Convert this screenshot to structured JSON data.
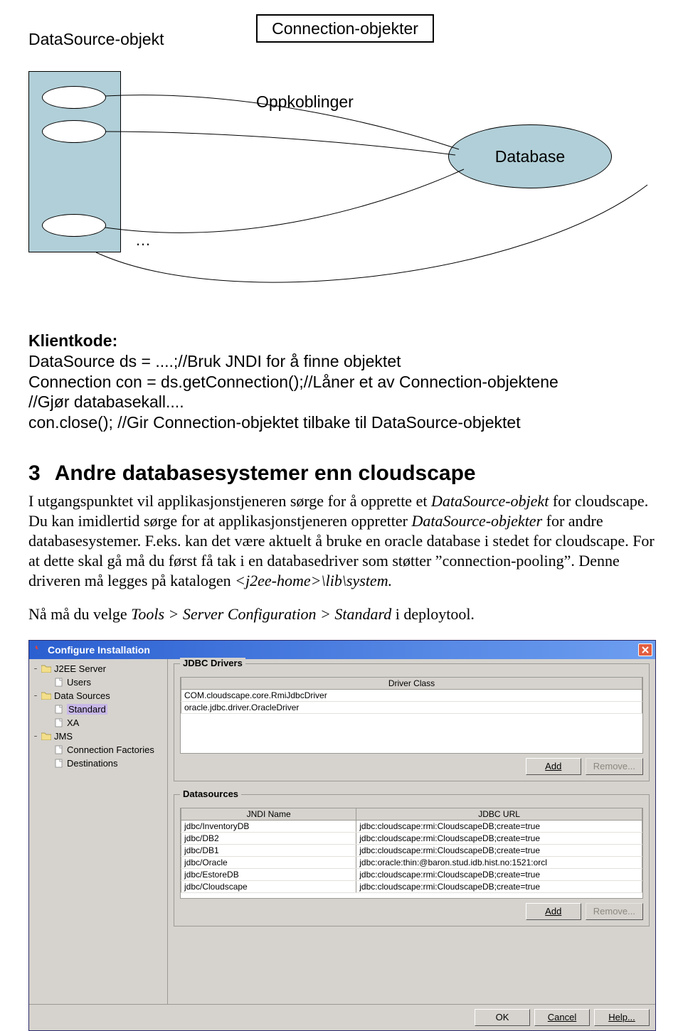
{
  "diagram": {
    "connection_objects_label": "Connection-objekter",
    "datasource_label": "DataSource-objekt",
    "connections_label": "Oppkoblinger",
    "database_label": "Database",
    "ellipsis": "…",
    "pool_bg": "#b1cfd8",
    "db_bg": "#b1cfd8",
    "border": "#000000",
    "pool_ellipse_tops": [
      20,
      68,
      200
    ]
  },
  "code": {
    "heading": "Klientkode:",
    "lang": "Java",
    "lines": [
      "DataSource ds = ....;//Bruk JNDI for å finne objektet",
      "Connection con = ds.getConnection();//Låner et av Connection-objektene",
      "//Gjør databasekall....",
      "con.close(); //Gir Connection-objektet tilbake til DataSource-objektet"
    ]
  },
  "section": {
    "number": "3",
    "title": "Andre databasesystemer enn cloudscape"
  },
  "para1": {
    "pre": "I utgangspunktet vil applikasjonstjeneren sørge for å opprette et ",
    "ital1": "DataSource-objekt",
    "mid1": " for cloudscape. Du kan imidlertid sørge for at applikasjonstjeneren oppretter ",
    "ital2": "DataSource-objekter",
    "mid2": " for andre databasesystemer. F.eks. kan det være aktuelt å bruke en oracle database i stedet for cloudscape. For  at dette skal gå må du først få tak i en databasedriver som støtter ”connection-pooling”. Denne driveren må legges på katalogen ",
    "ital3": "<j2ee-home>\\lib\\system.",
    "post": ""
  },
  "para2": {
    "pre": "Nå må du velge ",
    "ital": "Tools > Server Configuration > Standard",
    "post": " i deploytool."
  },
  "dialog": {
    "title": "Configure Installation",
    "tree": [
      {
        "level": 0,
        "toggle": "-",
        "icon": "folder",
        "label": "J2EE Server"
      },
      {
        "level": 1,
        "toggle": "",
        "icon": "doc",
        "label": "Users"
      },
      {
        "level": 0,
        "toggle": "-",
        "icon": "folder",
        "label": "Data Sources"
      },
      {
        "level": 1,
        "toggle": "",
        "icon": "doc",
        "label": "Standard",
        "selected": true
      },
      {
        "level": 1,
        "toggle": "",
        "icon": "doc",
        "label": "XA"
      },
      {
        "level": 0,
        "toggle": "-",
        "icon": "folder",
        "label": "JMS"
      },
      {
        "level": 1,
        "toggle": "",
        "icon": "doc",
        "label": "Connection Factories"
      },
      {
        "level": 1,
        "toggle": "",
        "icon": "doc",
        "label": "Destinations"
      }
    ],
    "drivers": {
      "legend": "JDBC Drivers",
      "columns": [
        "Driver Class"
      ],
      "rows": [
        [
          "COM.cloudscape.core.RmiJdbcDriver"
        ],
        [
          "oracle.jdbc.driver.OracleDriver"
        ]
      ]
    },
    "datasources": {
      "legend": "Datasources",
      "columns": [
        "JNDI Name",
        "JDBC URL"
      ],
      "rows": [
        [
          "jdbc/InventoryDB",
          "jdbc:cloudscape:rmi:CloudscapeDB;create=true"
        ],
        [
          "jdbc/DB2",
          "jdbc:cloudscape:rmi:CloudscapeDB;create=true"
        ],
        [
          "jdbc/DB1",
          "jdbc:cloudscape:rmi:CloudscapeDB;create=true"
        ],
        [
          "jdbc/Oracle",
          "jdbc:oracle:thin:@baron.stud.idb.hist.no:1521:orcl"
        ],
        [
          "jdbc/EstoreDB",
          "jdbc:cloudscape:rmi:CloudscapeDB;create=true"
        ],
        [
          "jdbc/Cloudscape",
          "jdbc:cloudscape:rmi:CloudscapeDB;create=true"
        ]
      ]
    },
    "buttons": {
      "add": "Add",
      "remove": "Remove...",
      "ok": "OK",
      "cancel": "Cancel",
      "help": "Help..."
    },
    "colors": {
      "titlebar_from": "#2b5fd0",
      "titlebar_to": "#6d9ef0",
      "panel_bg": "#d6d3ce",
      "close_bg": "#e25e41",
      "tree_sel_bg": "#c8b8e8",
      "border": "#9c9a94"
    }
  }
}
